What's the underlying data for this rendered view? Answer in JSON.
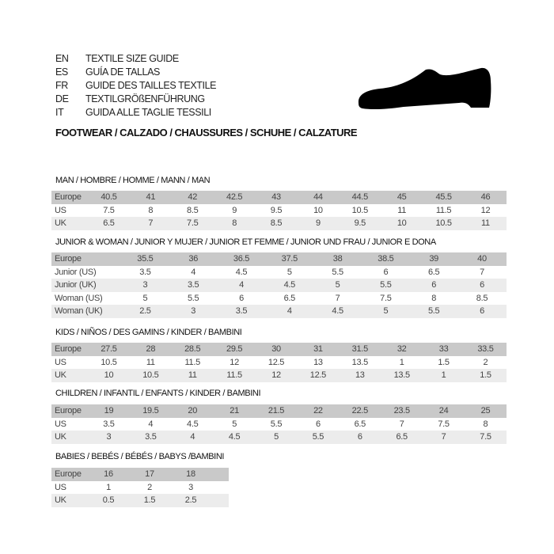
{
  "languages": [
    {
      "code": "EN",
      "text": "TEXTILE SIZE GUIDE"
    },
    {
      "code": "ES",
      "text": "GUÍA DE TALLAS"
    },
    {
      "code": "FR",
      "text": "GUIDE DES TAILLES TEXTILE"
    },
    {
      "code": "DE",
      "text": "TEXTILGRÖßENFÜHRUNG"
    },
    {
      "code": "IT",
      "text": "GUIDA ALLE TAGLIE TESSILI"
    }
  ],
  "footwear_title": "FOOTWEAR / CALZADO / CHAUSSURES / SCHUHE / CALZATURE",
  "icon": "shoe-silhouette-icon",
  "colors": {
    "header_row": "#c9c9c9",
    "alt_row": "#ececec"
  },
  "tables": [
    {
      "title": "MAN / HOMBRE / HOMME / MANN / MAN",
      "rows": [
        {
          "label": "Europe",
          "values": [
            "40.5",
            "41",
            "42",
            "42.5",
            "43",
            "44",
            "44.5",
            "45",
            "45.5",
            "46"
          ]
        },
        {
          "label": "US",
          "values": [
            "7.5",
            "8",
            "8.5",
            "9",
            "9.5",
            "10",
            "10.5",
            "11",
            "11.5",
            "12"
          ]
        },
        {
          "label": "UK",
          "values": [
            "6.5",
            "7",
            "7.5",
            "8",
            "8.5",
            "9",
            "9.5",
            "10",
            "10.5",
            "11"
          ]
        }
      ]
    },
    {
      "title": "JUNIOR & WOMAN / JUNIOR Y MUJER / JUNIOR ET FEMME / JUNIOR UND FRAU / JUNIOR E DONA",
      "rows": [
        {
          "label": "Europe",
          "values": [
            "35.5",
            "36",
            "36.5",
            "37.5",
            "38",
            "38.5",
            "39",
            "40"
          ]
        },
        {
          "label": "Junior (US)",
          "values": [
            "3.5",
            "4",
            "4.5",
            "5",
            "5.5",
            "6",
            "6.5",
            "7"
          ]
        },
        {
          "label": "Junior (UK)",
          "values": [
            "3",
            "3.5",
            "4",
            "4.5",
            "5",
            "5.5",
            "6",
            "6"
          ]
        },
        {
          "label": "Woman (US)",
          "values": [
            "5",
            "5.5",
            "6",
            "6.5",
            "7",
            "7.5",
            "8",
            "8.5"
          ]
        },
        {
          "label": "Woman (UK)",
          "values": [
            "2.5",
            "3",
            "3.5",
            "4",
            "4.5",
            "5",
            "5.5",
            "6"
          ]
        }
      ]
    },
    {
      "title": "KIDS / NIÑOS / DES GAMINS / KINDER / BAMBINI",
      "rows": [
        {
          "label": "Europe",
          "values": [
            "27.5",
            "28",
            "28.5",
            "29.5",
            "30",
            "31",
            "31.5",
            "32",
            "33",
            "33.5"
          ]
        },
        {
          "label": "US",
          "values": [
            "10.5",
            "11",
            "11.5",
            "12",
            "12.5",
            "13",
            "13.5",
            "1",
            "1.5",
            "2"
          ]
        },
        {
          "label": "UK",
          "values": [
            "10",
            "10.5",
            "11",
            "11.5",
            "12",
            "12.5",
            "13",
            "13.5",
            "1",
            "1.5"
          ]
        }
      ]
    },
    {
      "title": "CHILDREN / INFANTIL / ENFANTS / KINDER / BAMBINI",
      "rows": [
        {
          "label": "Europe",
          "values": [
            "19",
            "19.5",
            "20",
            "21",
            "21.5",
            "22",
            "22.5",
            "23.5",
            "24",
            "25"
          ]
        },
        {
          "label": "US",
          "values": [
            "3.5",
            "4",
            "4.5",
            "5",
            "5.5",
            "6",
            "6.5",
            "7",
            "7.5",
            "8"
          ]
        },
        {
          "label": "UK",
          "values": [
            "3",
            "3.5",
            "4",
            "4.5",
            "5",
            "5.5",
            "6",
            "6.5",
            "7",
            "7.5"
          ]
        }
      ]
    },
    {
      "title": "BABIES  / BEBÉS / BÉBÉS / BABYS /BAMBINI",
      "rows": [
        {
          "label": "Europe",
          "values": [
            "16",
            "17",
            "18"
          ]
        },
        {
          "label": "US",
          "values": [
            "1",
            "2",
            "3"
          ]
        },
        {
          "label": "UK",
          "values": [
            "0.5",
            "1.5",
            "2.5"
          ]
        }
      ]
    }
  ]
}
